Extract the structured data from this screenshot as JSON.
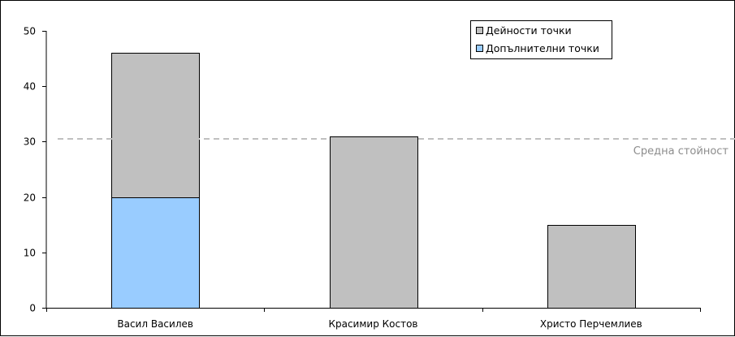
{
  "chart_data": {
    "type": "bar",
    "stacked": true,
    "categories": [
      "Васил Василев",
      "Красимир Костов",
      "Христо Перчемлиев"
    ],
    "series": [
      {
        "name": "Допълнителни точки",
        "values": [
          20,
          0,
          0
        ],
        "color": "#99ccff"
      },
      {
        "name": "Дейности точки",
        "values": [
          26,
          31,
          15
        ],
        "color": "#c0c0c0"
      }
    ],
    "legend_order": [
      1,
      0
    ],
    "legend_position": "top-right",
    "ylim": [
      0,
      50
    ],
    "yticks": [
      0,
      10,
      20,
      30,
      40,
      50
    ],
    "reference_line": {
      "value": 30.5,
      "label": "Средна стойност",
      "color": "#c0c0c0"
    },
    "grid": false,
    "title": "",
    "xlabel": "",
    "ylabel": ""
  }
}
